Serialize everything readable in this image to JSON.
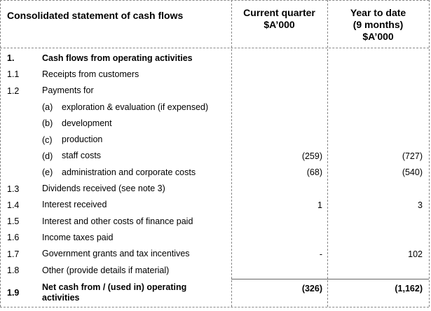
{
  "header": {
    "title": "Consolidated statement of cash flows",
    "columns": [
      [
        "Current quarter",
        "$A’000"
      ],
      [
        "Year to date",
        "(9 months)",
        "$A’000"
      ]
    ]
  },
  "table": {
    "rows": [
      {
        "num": "1.",
        "label": "Cash flows from operating activities"
      },
      {
        "num": "1.1",
        "label": "Receipts from customers"
      },
      {
        "num": "1.2",
        "label": "Payments for"
      },
      {
        "sub": "(a)",
        "label": "exploration & evaluation (if expensed)"
      },
      {
        "sub": "(b)",
        "label": "development"
      },
      {
        "sub": "(c)",
        "label": "production"
      },
      {
        "sub": "(d)",
        "label": "staff costs",
        "current": "(259)",
        "ytd": "(727)"
      },
      {
        "sub": "(e)",
        "label": "administration and corporate costs",
        "current": "(68)",
        "ytd": "(540)"
      },
      {
        "num": "1.3",
        "label": "Dividends received (see note 3)"
      },
      {
        "num": "1.4",
        "label": "Interest received",
        "current": "1",
        "ytd": "3"
      },
      {
        "num": "1.5",
        "label": "Interest and other costs of finance paid"
      },
      {
        "num": "1.6",
        "label": "Income taxes paid"
      },
      {
        "num": "1.7",
        "label": "Government grants and tax incentives",
        "current": "-",
        "ytd": "102"
      },
      {
        "num": "1.8",
        "label": "Other (provide details if material)"
      },
      {
        "num": "1.9",
        "label": "Net cash from / (used in) operating activities",
        "current": "(326)",
        "ytd": "(1,162)"
      }
    ]
  }
}
